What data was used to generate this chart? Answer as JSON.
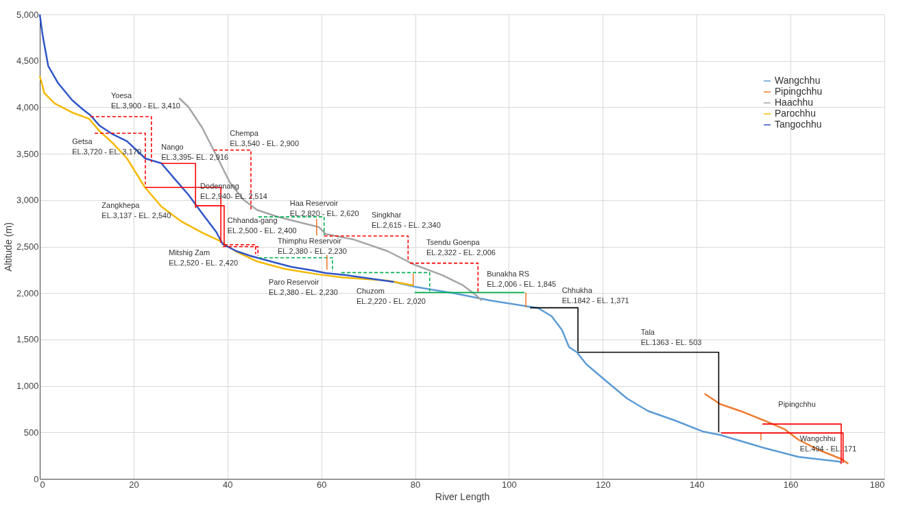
{
  "chart_data": {
    "type": "line",
    "xlabel": "River Length",
    "ylabel": "Altitude (m)",
    "xlim": [
      0,
      180
    ],
    "ylim": [
      0,
      5000
    ],
    "xticks": [
      0,
      20,
      40,
      60,
      80,
      100,
      120,
      140,
      160,
      180
    ],
    "yticks": [
      0,
      {
        "value": 500,
        "label": "500"
      },
      {
        "value": 1000,
        "label": "1,000"
      },
      {
        "value": 1500,
        "label": "1,500"
      },
      {
        "value": 2000,
        "label": "2,000"
      },
      {
        "value": 2500,
        "label": "2,500"
      },
      {
        "value": 3000,
        "label": "3,000"
      },
      {
        "value": 3500,
        "label": "3,500"
      },
      {
        "value": 4000,
        "label": "4,000"
      },
      {
        "value": 4500,
        "label": "4,500"
      },
      {
        "value": 5000,
        "label": "5,000"
      }
    ],
    "grid": true,
    "legend": "top right",
    "marker": "none",
    "line_style": "solid",
    "series": [
      {
        "name": "Wangchhu",
        "color": "#5b9bd5",
        "x": [
          75.5,
          79.9,
          88.7,
          96.0,
          103.3,
          106.2,
          109.1,
          111.3,
          112.8,
          114.4,
          116.5,
          120.8,
          125.2,
          129.6,
          135.4,
          141.3,
          145.0,
          154.4,
          161.7,
          170.5,
          170.8
        ],
        "values": [
          2120,
          2068,
          1994,
          1920,
          1861,
          1839,
          1750,
          1603,
          1418,
          1366,
          1233,
          1049,
          864,
          731,
          628,
          510,
          473,
          332,
          236,
          185,
          170
        ]
      },
      {
        "name": "Pipingchhu",
        "color": "#ed7d31",
        "x": [
          141.7,
          145.0,
          150.1,
          154.4,
          158.8,
          161.7,
          166.1,
          170.8,
          172.3
        ],
        "values": [
          916,
          805,
          716,
          628,
          532,
          421,
          310,
          214,
          162
        ]
      },
      {
        "name": "Haachhu",
        "color": "#a5a5a5",
        "x": [
          29.7,
          31.7,
          34.6,
          37.6,
          40.5,
          43.4,
          46.3,
          50.7,
          56.5,
          59.5,
          60.9,
          66.8,
          74.1,
          79.9,
          85.8,
          90.2,
          93.1,
          94.2
        ],
        "values": [
          4099,
          4003,
          3781,
          3486,
          3191,
          3006,
          2895,
          2821,
          2747,
          2710,
          2637,
          2578,
          2452,
          2304,
          2193,
          2083,
          1972,
          1920
        ]
      },
      {
        "name": "Parochhu",
        "color": "#f5b800",
        "x": [
          0,
          1.0,
          3.2,
          6.9,
          10.5,
          12.7,
          15.6,
          18.6,
          22.4,
          25.9,
          30.2,
          34.6,
          38.3,
          41.9,
          46.3,
          52.2,
          59.5,
          64.3,
          74.1,
          79.6
        ],
        "values": [
          4335,
          4151,
          4040,
          3944,
          3877,
          3745,
          3612,
          3449,
          3139,
          2932,
          2770,
          2651,
          2563,
          2445,
          2341,
          2260,
          2200,
          2170,
          2134,
          2083
        ]
      },
      {
        "name": "Tangochhu",
        "color": "#2f55c8",
        "x": [
          0,
          0.6,
          1.8,
          3.9,
          6.9,
          9.1,
          10.8,
          12.7,
          15.6,
          18.6,
          22.5,
          25.9,
          28.8,
          31.7,
          34.6,
          37.6,
          39.0,
          41.9,
          44.9,
          49.2,
          53.6,
          58.0,
          60.9,
          65.3,
          75.5
        ],
        "values": [
          5000,
          4779,
          4446,
          4261,
          4077,
          3981,
          3914,
          3804,
          3708,
          3634,
          3449,
          3397,
          3227,
          3058,
          2858,
          2659,
          2526,
          2452,
          2400,
          2341,
          2282,
          2245,
          2216,
          2193,
          2120
        ]
      },
      {
        "color": "#ff0000",
        "line_style": "dashed",
        "x": [
          10.8,
          23.8,
          23.8
        ],
        "values": [
          3900,
          3900,
          3410
        ]
      },
      {
        "color": "#ff0000",
        "line_style": "dashed",
        "x": [
          11.7,
          22.5,
          22.5
        ],
        "values": [
          3720,
          3720,
          3170
        ]
      },
      {
        "color": "#ff0000",
        "line_style": "solid",
        "x": [
          25.9,
          33.2,
          33.2
        ],
        "values": [
          3395,
          3395,
          2916
        ]
      },
      {
        "color": "#ff0000",
        "line_style": "solid",
        "x": [
          22.5,
          38.6,
          38.6
        ],
        "values": [
          3137,
          3137,
          2540
        ]
      },
      {
        "color": "#ff0000",
        "line_style": "solid",
        "x": [
          33.2,
          39.3,
          39.3
        ],
        "values": [
          2940,
          2940,
          2514
        ]
      },
      {
        "color": "#ff0000",
        "line_style": "dashed",
        "x": [
          37.1,
          45.0,
          45.0
        ],
        "values": [
          3540,
          3540,
          2900
        ]
      },
      {
        "color": "#ff0000",
        "line_style": "dashed",
        "x": [
          39.0,
          46.5,
          46.5
        ],
        "values": [
          2500,
          2500,
          2400
        ]
      },
      {
        "color": "#ff0000",
        "line_style": "dashed",
        "x": [
          39.3,
          46.0,
          46.0
        ],
        "values": [
          2520,
          2520,
          2420
        ]
      },
      {
        "color": "#00b050",
        "line_style": "dashed",
        "x": [
          46.6,
          60.6,
          60.6
        ],
        "values": [
          2820,
          2820,
          2620
        ]
      },
      {
        "color": "#00b050",
        "line_style": "dashed",
        "x": [
          46.6,
          62.4,
          62.4
        ],
        "values": [
          2380,
          2380,
          2230
        ]
      },
      {
        "color": "#00b050",
        "line_style": "dashed",
        "x": [
          64.3,
          83.1,
          83.1
        ],
        "values": [
          2220,
          2220,
          2020
        ]
      },
      {
        "color": "#ff0000",
        "line_style": "dashed",
        "x": [
          60.6,
          78.5,
          78.5
        ],
        "values": [
          2615,
          2615,
          2340
        ]
      },
      {
        "color": "#ff0000",
        "line_style": "dashed",
        "x": [
          78.9,
          93.4,
          93.4
        ],
        "values": [
          2322,
          2322,
          2006
        ]
      },
      {
        "color": "#00b050",
        "line_style": "solid",
        "x": [
          79.9,
          103.3
        ],
        "values": [
          2006,
          2006
        ]
      },
      {
        "color": "#000000",
        "line_style": "solid",
        "x": [
          104.5,
          114.7,
          114.7
        ],
        "values": [
          1842,
          1842,
          1371
        ]
      },
      {
        "color": "#000000",
        "line_style": "solid",
        "x": [
          114.7,
          144.7,
          144.7
        ],
        "values": [
          1363,
          1363,
          503
        ]
      },
      {
        "color": "#ff0000",
        "line_style": "solid",
        "x": [
          145.2,
          171.2,
          171.2
        ],
        "values": [
          494,
          494,
          171
        ]
      },
      {
        "color": "#ff0000",
        "line_style": "solid",
        "x": [
          154.0,
          170.8,
          170.8
        ],
        "values": [
          590,
          590,
          160
        ]
      },
      {
        "color": "#ed7d31",
        "line_style": "solid",
        "x": [
          59.0,
          59.0
        ],
        "values": [
          2800,
          2620
        ]
      },
      {
        "color": "#ed7d31",
        "line_style": "solid",
        "x": [
          61.2,
          61.2
        ],
        "values": [
          2410,
          2250
        ]
      },
      {
        "color": "#ed7d31",
        "line_style": "solid",
        "x": [
          79.6,
          79.6
        ],
        "values": [
          2210,
          2083
        ]
      },
      {
        "color": "#ed7d31",
        "line_style": "solid",
        "x": [
          103.6,
          103.6
        ],
        "values": [
          2006,
          1846
        ]
      },
      {
        "color": "#ed7d31",
        "line_style": "solid",
        "x": [
          153.7,
          153.7
        ],
        "values": [
          487,
          414
        ]
      }
    ],
    "annotations": [
      "Yoesa\nEL.3,900 - EL. 3,410",
      "Getsa\nEL.3,720 - EL. 3,170",
      "Nango\nEL.3,395- EL. 2,916",
      "Chempa\nEL.3,540 - EL. 2,900",
      "Dodennang\nEL.2,940- EL. 2,514",
      "Zangkhepa\nEL.3,137 - EL. 2,540",
      "Chhanda-gang\nEL.2,500 - EL. 2,400",
      "Haa Reservoir\nEL.2,820 - EL. 2,620",
      "Singkhar\nEL.2,615 - EL. 2,340",
      "Thimphu Reservoir\nEL.2,380 - EL. 2,230",
      "Tsendu Goenpa\nEL.2,322 - EL. 2,006",
      "Mitshig Zam\nEL.2,520 - EL. 2,420",
      "Paro Reservoir\nEL.2,380 - EL. 2,230",
      "Bunakha RS\nEL.2,006 - EL. 1,845",
      "Chuzom\nEL.2,220 - EL. 2,020",
      "Chhukha\nEL.1842 - EL. 1,371",
      "Tala\nEL.1363 - EL. 503",
      "Pipingchhu",
      "Wangchhu\nEL.494 - EL. 171"
    ]
  }
}
